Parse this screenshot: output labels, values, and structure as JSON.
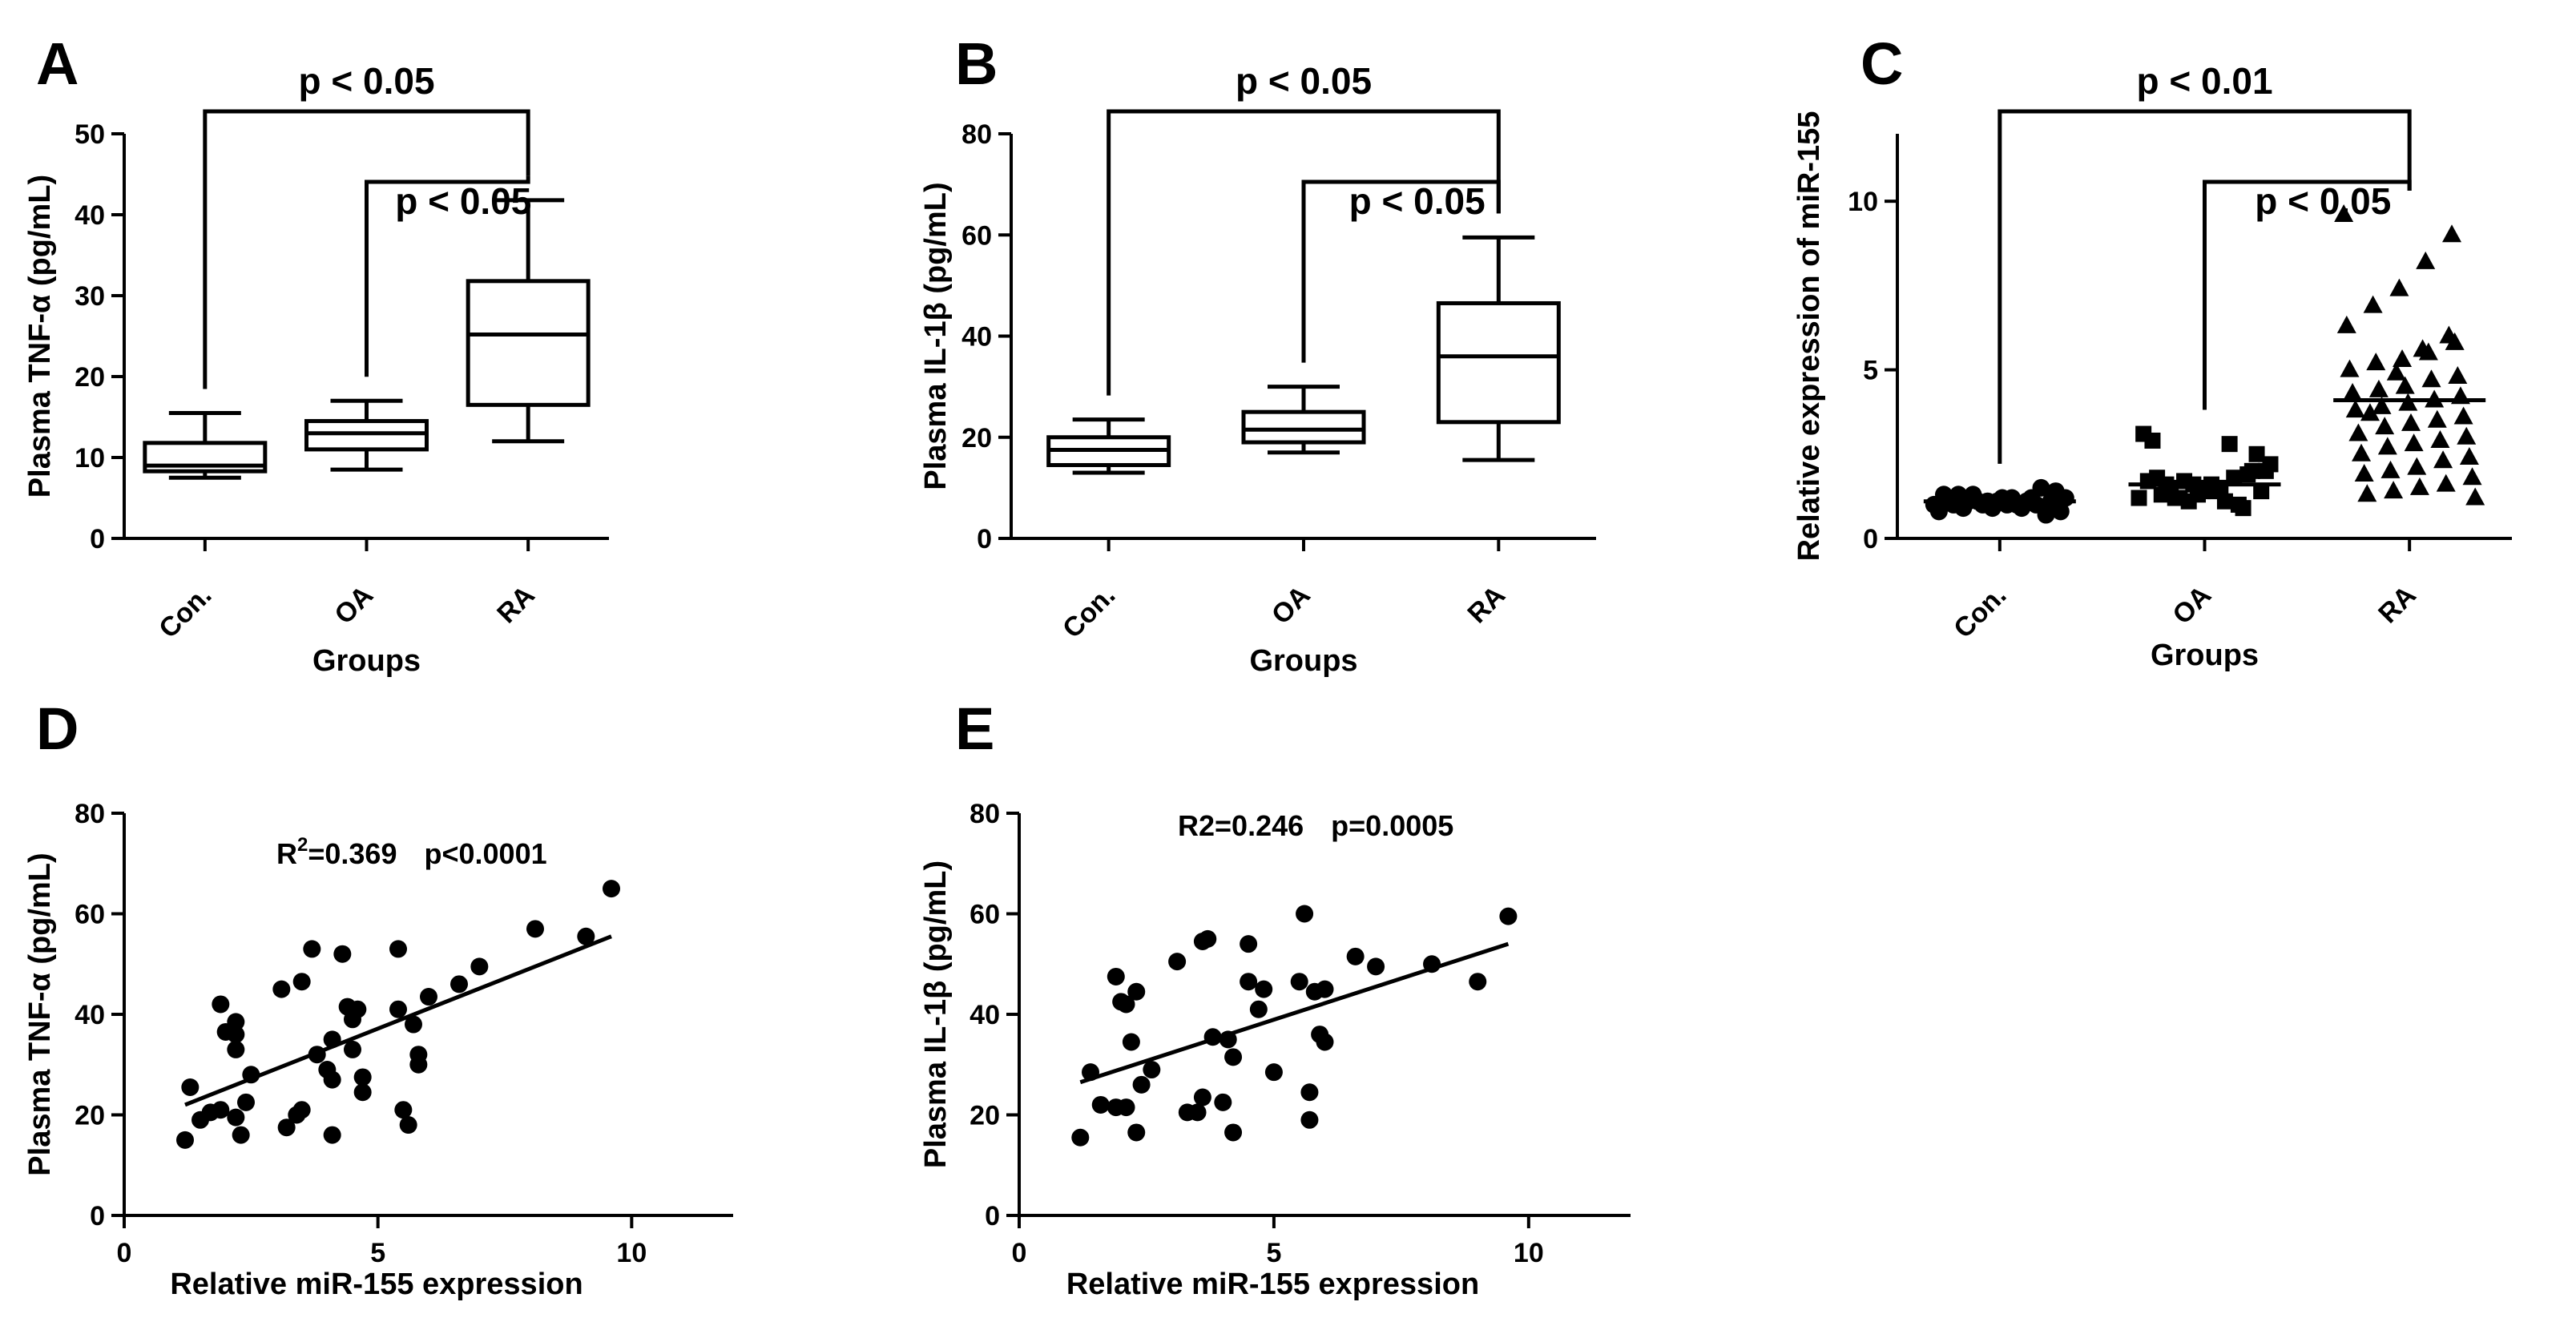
{
  "chart_data": [
    {
      "panel": "A",
      "type": "box",
      "categories": [
        "Con.",
        "OA",
        "RA"
      ],
      "xlabel": "Groups",
      "ylabel": "Plasma TNF-α (pg/mL)",
      "ylim": [
        0,
        50
      ],
      "yticks": [
        0,
        10,
        20,
        30,
        40,
        50
      ],
      "boxes": [
        {
          "min": 7.5,
          "q1": 8.3,
          "median": 9.0,
          "q3": 11.8,
          "max": 15.5
        },
        {
          "min": 8.5,
          "q1": 11.0,
          "median": 13.0,
          "q3": 14.5,
          "max": 17.0
        },
        {
          "min": 12.0,
          "q1": 16.5,
          "median": 25.2,
          "q3": 31.8,
          "max": 41.8
        }
      ],
      "brackets": [
        {
          "from": 0,
          "to": 2,
          "label": "p < 0.05"
        },
        {
          "from": 1,
          "to": 2,
          "label": "p < 0.05"
        }
      ]
    },
    {
      "panel": "B",
      "type": "box",
      "categories": [
        "Con.",
        "OA",
        "RA"
      ],
      "xlabel": "Groups",
      "ylabel": "Plasma IL-1β (pg/mL)",
      "ylim": [
        0,
        80
      ],
      "yticks": [
        0,
        20,
        40,
        60,
        80
      ],
      "boxes": [
        {
          "min": 13.0,
          "q1": 14.5,
          "median": 17.5,
          "q3": 20.0,
          "max": 23.5
        },
        {
          "min": 17.0,
          "q1": 19.0,
          "median": 21.5,
          "q3": 25.0,
          "max": 30.0
        },
        {
          "min": 15.5,
          "q1": 23.0,
          "median": 36.0,
          "q3": 46.5,
          "max": 59.5
        }
      ],
      "brackets": [
        {
          "from": 0,
          "to": 2,
          "label": "p < 0.05"
        },
        {
          "from": 1,
          "to": 2,
          "label": "p < 0.05"
        }
      ]
    },
    {
      "panel": "C",
      "type": "scatter",
      "categories": [
        "Con.",
        "OA",
        "RA"
      ],
      "xlabel": "Groups",
      "ylabel": "Relative expression of miR-155",
      "ylim": [
        0,
        12
      ],
      "yticks": [
        0,
        5,
        10
      ],
      "group_means": [
        1.1,
        1.6,
        4.1
      ],
      "groups": [
        {
          "marker": "circle",
          "values": [
            1.0,
            1.1,
            0.9,
            1.2,
            1.3,
            1.0,
            0.8,
            1.1,
            1.2,
            1.4,
            0.9,
            1.0,
            1.1,
            1.3,
            1.2,
            0.7,
            1.0,
            1.1,
            1.5,
            1.2,
            0.9,
            1.0,
            1.3,
            1.1,
            1.2,
            0.8,
            1.0,
            1.1
          ]
        },
        {
          "marker": "square",
          "values": [
            1.2,
            1.5,
            1.4,
            1.8,
            2.0,
            1.3,
            1.6,
            1.1,
            2.5,
            2.9,
            1.7,
            1.4,
            1.9,
            3.1,
            1.2,
            1.5,
            1.0,
            2.2,
            1.6,
            1.3,
            2.8,
            1.4,
            1.8,
            1.1,
            1.5,
            2.0,
            1.7,
            1.2,
            1.6,
            0.9
          ]
        },
        {
          "marker": "triangle",
          "values": [
            9.6,
            9.0,
            8.2,
            7.4,
            6.9,
            6.3,
            5.8,
            5.5,
            5.3,
            5.2,
            5.0,
            4.8,
            4.7,
            4.5,
            4.4,
            4.3,
            4.2,
            4.1,
            4.0,
            3.9,
            3.8,
            3.6,
            3.5,
            3.4,
            3.3,
            3.1,
            3.0,
            2.9,
            2.8,
            2.7,
            2.5,
            2.4,
            2.3,
            2.1,
            2.0,
            1.9,
            1.8,
            1.6,
            1.5,
            1.4,
            1.3,
            1.2,
            6.0,
            5.6,
            4.9,
            3.7
          ]
        }
      ],
      "brackets": [
        {
          "from": 0,
          "to": 2,
          "label": "p < 0.01"
        },
        {
          "from": 1,
          "to": 2,
          "label": "p < 0.05"
        }
      ]
    },
    {
      "panel": "D",
      "type": "scatter",
      "xlabel": "Relative miR-155 expression",
      "ylabel": "Plasma TNF-α (pg/mL)",
      "xlim": [
        0,
        12
      ],
      "ylim": [
        0,
        80
      ],
      "xticks": [
        0,
        5,
        10
      ],
      "yticks": [
        0,
        20,
        40,
        60,
        80
      ],
      "annotation": {
        "r2_label": "R",
        "r2_sup": "2",
        "r2_value": "=0.369",
        "p_text": "p<0.0001"
      },
      "fit": {
        "x": [
          1.2,
          9.6
        ],
        "y": [
          22.0,
          55.5
        ]
      },
      "points": [
        [
          1.2,
          15
        ],
        [
          1.3,
          25.5
        ],
        [
          1.5,
          19
        ],
        [
          1.7,
          20.5
        ],
        [
          1.9,
          21
        ],
        [
          1.9,
          42
        ],
        [
          2.0,
          36.5
        ],
        [
          2.2,
          33
        ],
        [
          2.2,
          38.5
        ],
        [
          2.2,
          36
        ],
        [
          2.2,
          19.5
        ],
        [
          2.3,
          16
        ],
        [
          2.4,
          22.5
        ],
        [
          2.5,
          28
        ],
        [
          3.1,
          45
        ],
        [
          3.2,
          17.5
        ],
        [
          3.4,
          20
        ],
        [
          3.5,
          46.5
        ],
        [
          3.5,
          21
        ],
        [
          3.7,
          53
        ],
        [
          3.8,
          32
        ],
        [
          4.0,
          29
        ],
        [
          4.1,
          16
        ],
        [
          4.1,
          27
        ],
        [
          4.1,
          35
        ],
        [
          4.3,
          52
        ],
        [
          4.4,
          41.5
        ],
        [
          4.5,
          39
        ],
        [
          4.6,
          41
        ],
        [
          4.5,
          33
        ],
        [
          4.7,
          24.5
        ],
        [
          4.7,
          27.5
        ],
        [
          5.4,
          53
        ],
        [
          5.4,
          41
        ],
        [
          5.5,
          21
        ],
        [
          5.6,
          18
        ],
        [
          5.7,
          38
        ],
        [
          5.8,
          32
        ],
        [
          5.8,
          30
        ],
        [
          6.0,
          43.5
        ],
        [
          6.6,
          46
        ],
        [
          7.0,
          49.5
        ],
        [
          8.1,
          57
        ],
        [
          9.1,
          55.5
        ],
        [
          9.6,
          65
        ]
      ]
    },
    {
      "panel": "E",
      "type": "scatter",
      "xlabel": "Relative miR-155 expression",
      "ylabel": "Plasma IL-1β (pg/mL)",
      "xlim": [
        0,
        12
      ],
      "ylim": [
        0,
        80
      ],
      "xticks": [
        0,
        5,
        10
      ],
      "yticks": [
        0,
        20,
        40,
        60,
        80
      ],
      "annotation": {
        "r2_label": "R2",
        "r2_sup": "",
        "r2_value": "=0.246",
        "p_text": "p=0.0005"
      },
      "fit": {
        "x": [
          1.2,
          9.6
        ],
        "y": [
          26.5,
          54.0
        ]
      },
      "points": [
        [
          1.2,
          15.5
        ],
        [
          1.4,
          28.5
        ],
        [
          1.6,
          22
        ],
        [
          1.9,
          21.5
        ],
        [
          1.9,
          47.5
        ],
        [
          2.0,
          42.5
        ],
        [
          2.1,
          42
        ],
        [
          2.1,
          21.5
        ],
        [
          2.2,
          34.5
        ],
        [
          2.3,
          44.5
        ],
        [
          2.3,
          16.5
        ],
        [
          2.4,
          26
        ],
        [
          2.6,
          29
        ],
        [
          3.1,
          50.5
        ],
        [
          3.3,
          20.5
        ],
        [
          3.5,
          20.5
        ],
        [
          3.6,
          23.5
        ],
        [
          3.6,
          54.5
        ],
        [
          3.7,
          55
        ],
        [
          3.8,
          35.5
        ],
        [
          4.0,
          22.5
        ],
        [
          4.1,
          35
        ],
        [
          4.2,
          16.5
        ],
        [
          4.2,
          31.5
        ],
        [
          4.5,
          54
        ],
        [
          4.5,
          46.5
        ],
        [
          4.7,
          41
        ],
        [
          4.8,
          45
        ],
        [
          5.0,
          28.5
        ],
        [
          5.5,
          46.5
        ],
        [
          5.6,
          60
        ],
        [
          5.7,
          24.5
        ],
        [
          5.7,
          19
        ],
        [
          5.8,
          44.5
        ],
        [
          5.9,
          36
        ],
        [
          6.0,
          34.5
        ],
        [
          6.0,
          45
        ],
        [
          6.6,
          51.5
        ],
        [
          7.0,
          49.5
        ],
        [
          8.1,
          50
        ],
        [
          9.0,
          46.5
        ],
        [
          9.6,
          59.5
        ]
      ]
    }
  ],
  "figure": {
    "panel_letters": [
      "A",
      "B",
      "C",
      "D",
      "E"
    ]
  }
}
